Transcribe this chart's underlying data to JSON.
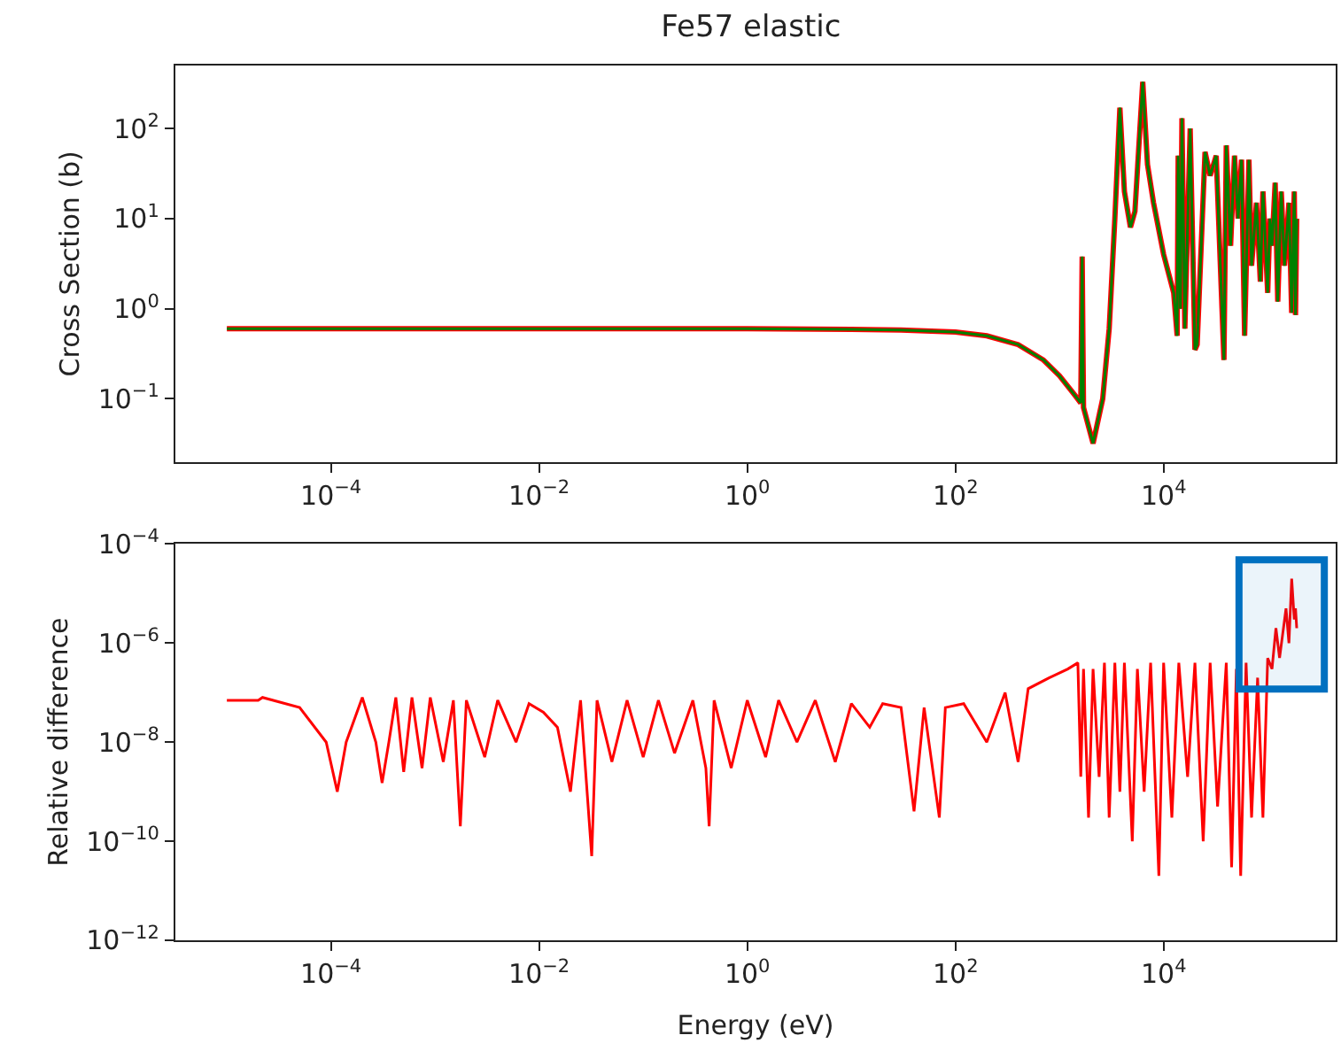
{
  "chart_data": [
    {
      "type": "line",
      "title": "Fe57 elastic",
      "ylabel": "Cross Section (b)",
      "log": "xy",
      "xlim": [
        3.2e-06,
        450000.0
      ],
      "xticks": [
        {
          "value": 0.0001,
          "label": "10$^{−4}$"
        },
        {
          "value": 0.01,
          "label": "10$^{−2}$"
        },
        {
          "value": 1,
          "label": "10$^{0}$"
        },
        {
          "value": 100,
          "label": "10$^{2}$"
        },
        {
          "value": 10000,
          "label": "10$^{4}$"
        }
      ],
      "ylim": [
        0.02,
        500
      ],
      "yticks": [
        {
          "value": 0.1,
          "label": "10$^{−1}$"
        },
        {
          "value": 1,
          "label": "10$^{0}$"
        },
        {
          "value": 10,
          "label": "10$^{1}$"
        },
        {
          "value": 100,
          "label": "10$^{2}$"
        }
      ],
      "x": [
        1e-05,
        0.001,
        0.1,
        1,
        10,
        30,
        100,
        200,
        400,
        700,
        1000,
        1400,
        1600,
        1650,
        1700,
        2100,
        2600,
        3000,
        3400,
        3800,
        4200,
        4800,
        5300,
        6300,
        7000,
        8000,
        10000,
        12500,
        13500,
        13800,
        14500,
        15000,
        16000,
        18000,
        20000,
        21000,
        25000,
        28000,
        32000,
        38000,
        40000,
        44000,
        48000,
        52000,
        56000,
        60000,
        66000,
        70000,
        78000,
        85000,
        90000,
        100000,
        105000,
        110000,
        118000,
        125000,
        135000,
        145000,
        160000,
        170000,
        180000,
        185000,
        190000
      ],
      "series": [
        {
          "color": "#ff0000",
          "values": [
            0.6,
            0.6,
            0.6,
            0.6,
            0.59,
            0.58,
            0.55,
            0.5,
            0.4,
            0.27,
            0.18,
            0.11,
            0.09,
            3.8,
            0.08,
            0.032,
            0.1,
            0.6,
            10,
            170,
            20,
            8,
            12,
            330,
            40,
            15,
            4,
            1.5,
            0.5,
            50,
            1,
            130,
            0.6,
            100,
            0.35,
            0.4,
            55,
            30,
            50,
            0.27,
            65,
            5,
            50,
            10,
            45,
            0.5,
            45,
            3,
            15,
            2,
            20,
            1.5,
            10,
            5,
            25,
            1.2,
            20,
            3,
            15,
            0.9,
            20,
            0.85,
            10
          ]
        },
        {
          "color": "#008000",
          "values": [
            0.6,
            0.6,
            0.6,
            0.6,
            0.59,
            0.58,
            0.55,
            0.5,
            0.4,
            0.27,
            0.18,
            0.11,
            0.09,
            3.8,
            0.08,
            0.032,
            0.1,
            0.6,
            10,
            170,
            20,
            8,
            12,
            330,
            40,
            15,
            4,
            1.5,
            0.5,
            50,
            1,
            130,
            0.6,
            100,
            0.35,
            0.4,
            55,
            30,
            50,
            0.27,
            65,
            5,
            50,
            10,
            45,
            0.5,
            45,
            3,
            15,
            2,
            20,
            1.5,
            10,
            5,
            25,
            1.2,
            20,
            3,
            15,
            0.9,
            20,
            0.85,
            10
          ]
        }
      ]
    },
    {
      "type": "line",
      "xlabel": "Energy (eV)",
      "ylabel": "Relative difference",
      "log": "xy",
      "xlim": [
        3.2e-06,
        450000.0
      ],
      "xticks": [
        {
          "value": 0.0001,
          "label": "10$^{−4}$"
        },
        {
          "value": 0.01,
          "label": "10$^{−2}$"
        },
        {
          "value": 1,
          "label": "10$^{0}$"
        },
        {
          "value": 100,
          "label": "10$^{2}$"
        },
        {
          "value": 10000,
          "label": "10$^{4}$"
        }
      ],
      "ylim": [
        1e-12,
        0.0001
      ],
      "yticks": [
        {
          "value": 1e-12,
          "label": "10$^{−12}$"
        },
        {
          "value": 1e-10,
          "label": "10$^{−10}$"
        },
        {
          "value": 1e-08,
          "label": "10$^{−8}$"
        },
        {
          "value": 1e-06,
          "label": "10$^{−6}$"
        },
        {
          "value": 0.0001,
          "label": "10$^{−4}$"
        }
      ],
      "bands": [
        {
          "axis": "x",
          "from": 53000,
          "to": 350000,
          "color": "#0070c0"
        }
      ],
      "x": [
        1e-05,
        2e-05,
        2.2e-05,
        5e-05,
        9e-05,
        0.000115,
        0.00014,
        0.0002,
        0.00027,
        0.00031,
        0.00036,
        0.00042,
        0.0005,
        0.0006,
        0.00075,
        0.0009,
        0.0012,
        0.0015,
        0.00175,
        0.002,
        0.003,
        0.004,
        0.006,
        0.008,
        0.011,
        0.015,
        0.02,
        0.025,
        0.032,
        0.036,
        0.05,
        0.07,
        0.1,
        0.14,
        0.2,
        0.3,
        0.4,
        0.43,
        0.48,
        0.7,
        1,
        1.5,
        2,
        3,
        4.5,
        7,
        10,
        15,
        20,
        30,
        40,
        50,
        70,
        80,
        120,
        200,
        300,
        400,
        500,
        800,
        1200,
        1500,
        1600,
        1700,
        1900,
        2100,
        2400,
        2700,
        3000,
        3400,
        3800,
        4200,
        5000,
        5600,
        6500,
        7500,
        9000,
        10000,
        12000,
        14000,
        17000,
        20000,
        24000,
        28000,
        33000,
        40000,
        45000,
        50000,
        55000,
        62000,
        70000,
        80000,
        90000,
        100000,
        110000,
        120000,
        130000,
        150000,
        160000,
        170000,
        180000,
        185000,
        190000
      ],
      "series": [
        {
          "color": "#ff0000",
          "values": [
            7e-08,
            7e-08,
            8e-08,
            5e-08,
            1e-08,
            1e-09,
            1e-08,
            8e-08,
            1e-08,
            1.5e-09,
            1e-08,
            8e-08,
            2.5e-09,
            8e-08,
            3e-09,
            8e-08,
            4e-09,
            7e-08,
            2e-10,
            7e-08,
            5e-09,
            7e-08,
            1e-08,
            6e-08,
            4e-08,
            2e-08,
            1e-09,
            7e-08,
            5e-11,
            7e-08,
            4e-09,
            7e-08,
            5e-09,
            7e-08,
            6e-09,
            7e-08,
            3e-09,
            2e-10,
            7e-08,
            3e-09,
            7e-08,
            5e-09,
            7e-08,
            1e-08,
            7e-08,
            4e-09,
            6e-08,
            2e-08,
            6e-08,
            5e-08,
            4e-10,
            5e-08,
            3e-10,
            5e-08,
            6e-08,
            1e-08,
            1e-07,
            4e-09,
            1.2e-07,
            2e-07,
            3e-07,
            4e-07,
            2e-09,
            3e-07,
            3e-10,
            3e-07,
            2e-09,
            4e-07,
            3e-10,
            4e-07,
            1e-09,
            4e-07,
            1e-10,
            3e-07,
            1e-09,
            4e-07,
            2e-11,
            4e-07,
            3e-10,
            4e-07,
            2e-09,
            4e-07,
            1e-10,
            4e-07,
            5e-10,
            4e-07,
            3e-11,
            3e-07,
            2e-11,
            4e-07,
            3e-10,
            2e-07,
            3e-10,
            5e-07,
            3e-07,
            2e-06,
            5e-07,
            5e-06,
            1e-06,
            2e-05,
            3e-06,
            5e-06,
            2e-06
          ]
        }
      ]
    }
  ]
}
